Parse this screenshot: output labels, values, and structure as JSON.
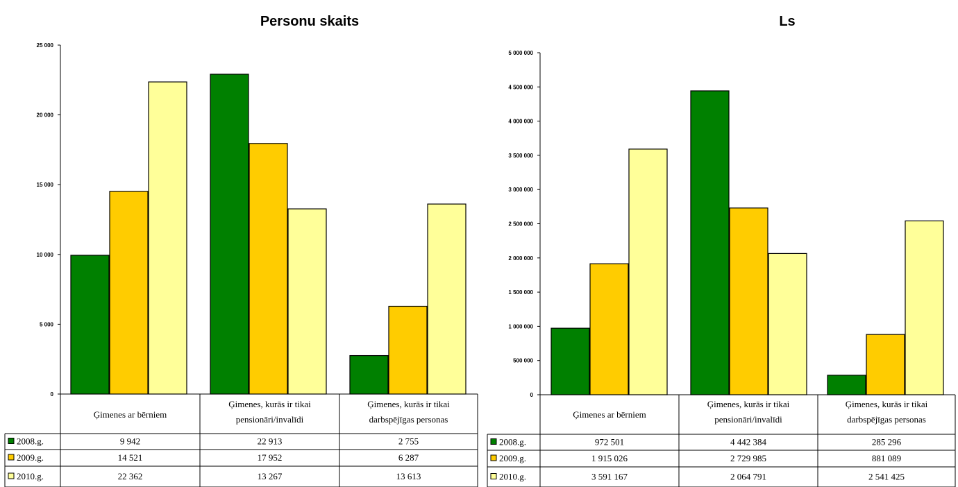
{
  "colors": {
    "2008.g.": "#008000",
    "2009.g.": "#FFCC00",
    "2010.g.": "#FFFF99"
  },
  "chart_data": [
    {
      "type": "bar",
      "title": "Personu skaits",
      "categories": [
        "Ģimenes ar bērniem",
        "Ģimenes, kurās ir tikai pensionāri/invalīdi",
        "Ģimenes, kurās ir tikai darbspējīgas personas"
      ],
      "category_lines": [
        [
          "Ģimenes ar bērniem"
        ],
        [
          "Ģimenes, kurās ir tikai",
          "pensionāri/invalīdi"
        ],
        [
          "Ģimenes, kurās ir tikai",
          "darbspējīgas personas"
        ]
      ],
      "series": [
        {
          "name": "2008.g.",
          "values": [
            9942,
            22913,
            2755
          ],
          "labels": [
            "9 942",
            "22 913",
            "2 755"
          ]
        },
        {
          "name": "2009.g.",
          "values": [
            14521,
            17952,
            6287
          ],
          "labels": [
            "14 521",
            "17 952",
            "6 287"
          ]
        },
        {
          "name": "2010.g.",
          "values": [
            22362,
            13267,
            13613
          ],
          "labels": [
            "22 362",
            "13 267",
            "13 613"
          ]
        }
      ],
      "ylim": [
        0,
        25000
      ],
      "yticks": [
        0,
        5000,
        10000,
        15000,
        20000,
        25000
      ],
      "ytick_labels": [
        "0",
        "5 000",
        "10 000",
        "15 000",
        "20 000",
        "25 000"
      ],
      "legend": "data-table"
    },
    {
      "type": "bar",
      "title": "Ls",
      "categories": [
        "Ģimenes ar bērniem",
        "Ģimenes, kurās ir tikai pensionāri/invalīdi",
        "Ģimenes, kurās ir tikai darbspējīgas personas"
      ],
      "category_lines": [
        [
          "Ģimenes ar bērniem"
        ],
        [
          "Ģimenes, kurās ir tikai",
          "pensionāri/invalīdi"
        ],
        [
          "Ģimenes, kurās ir tikai",
          "darbspējīgas personas"
        ]
      ],
      "series": [
        {
          "name": "2008.g.",
          "values": [
            972501,
            4442384,
            285296
          ],
          "labels": [
            "972 501",
            "4 442 384",
            "285 296"
          ]
        },
        {
          "name": "2009.g.",
          "values": [
            1915026,
            2729985,
            881089
          ],
          "labels": [
            "1 915 026",
            "2 729 985",
            "881 089"
          ]
        },
        {
          "name": "2010.g.",
          "values": [
            3591167,
            2064791,
            2541425
          ],
          "labels": [
            "3 591 167",
            "2 064 791",
            "2 541 425"
          ]
        }
      ],
      "ylim": [
        0,
        5000000
      ],
      "yticks": [
        0,
        500000,
        1000000,
        1500000,
        2000000,
        2500000,
        3000000,
        3500000,
        4000000,
        4500000,
        5000000
      ],
      "ytick_labels": [
        "0",
        "500 000",
        "1 000 000",
        "1 500 000",
        "2 000 000",
        "2 500 000",
        "3 000 000",
        "3 500 000",
        "4 000 000",
        "4 500 000",
        "5 000 000"
      ],
      "legend": "data-table"
    }
  ]
}
